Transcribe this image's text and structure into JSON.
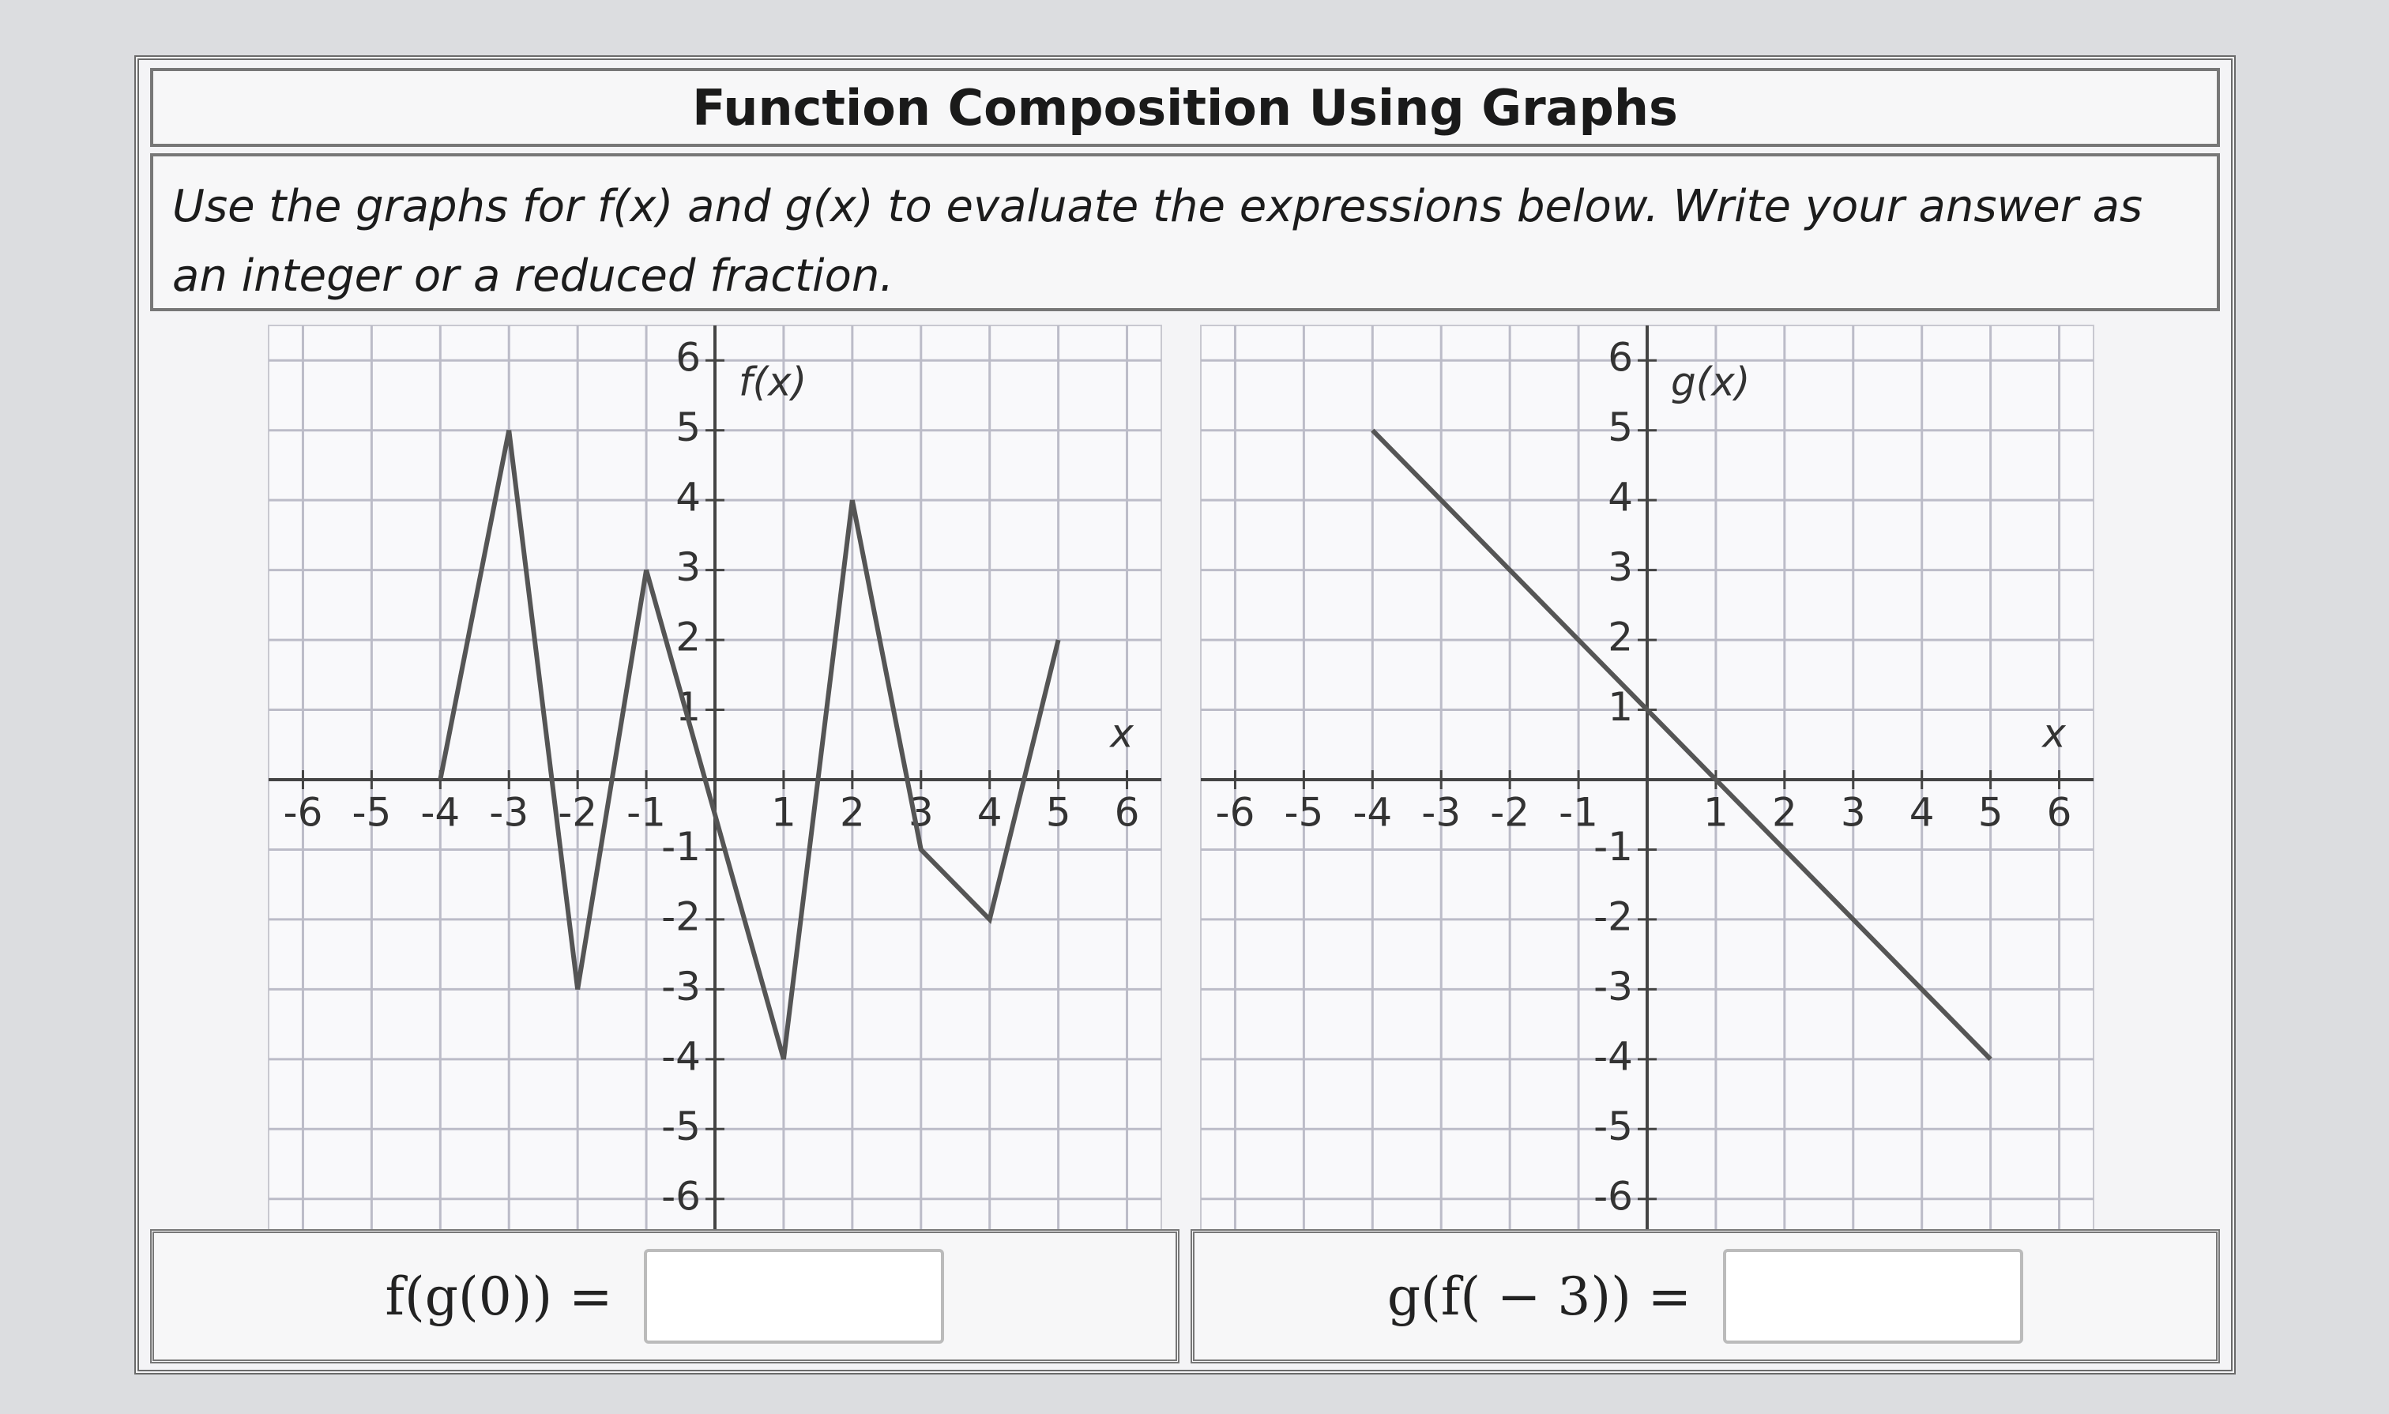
{
  "header": {
    "title": "Function Composition Using Graphs"
  },
  "instructions": "Use the graphs for f(x) and g(x) to evaluate the expressions below. Write your answer as an integer or a reduced fraction.",
  "graphs": [
    {
      "type": "line",
      "label": "f(x)",
      "x_label": "x",
      "xlim": [
        -6.5,
        6.5
      ],
      "ylim": [
        -6.5,
        6.5
      ],
      "xticks": [
        -6,
        -5,
        -4,
        -3,
        -2,
        -1,
        1,
        2,
        3,
        4,
        5,
        6
      ],
      "yticks": [
        -6,
        -5,
        -4,
        -3,
        -2,
        -1,
        1,
        2,
        3,
        4,
        5,
        6
      ],
      "grid": true,
      "color": "#555555",
      "label_color": "#3a56a8",
      "x": [
        -4,
        -3,
        -2,
        -1,
        1,
        2,
        3,
        4,
        5
      ],
      "y": [
        0,
        5,
        -3,
        3,
        -4,
        4,
        -1,
        -2,
        2
      ]
    },
    {
      "type": "line",
      "label": "g(x)",
      "x_label": "x",
      "xlim": [
        -6.5,
        6.5
      ],
      "ylim": [
        -6.5,
        6.5
      ],
      "xticks": [
        -6,
        -5,
        -4,
        -3,
        -2,
        -1,
        1,
        2,
        3,
        4,
        5,
        6
      ],
      "yticks": [
        -6,
        -5,
        -4,
        -3,
        -2,
        -1,
        1,
        2,
        3,
        4,
        5,
        6
      ],
      "grid": true,
      "color": "#555555",
      "label_color": "#3a56a8",
      "x": [
        -4,
        5
      ],
      "y": [
        5,
        -4
      ]
    }
  ],
  "questions": [
    {
      "expression": "f(g(0)) ="
    },
    {
      "expression": "g(f( − 3)) ="
    }
  ]
}
